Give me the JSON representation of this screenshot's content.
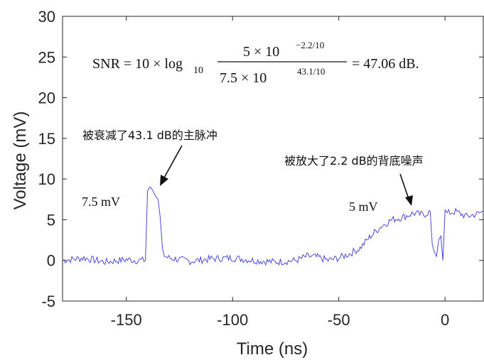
{
  "chart_data": {
    "type": "line",
    "xlabel": "Time (ns)",
    "ylabel": "Voltage (mV)",
    "xlim": [
      -180,
      18
    ],
    "ylim": [
      -5,
      30
    ],
    "x_ticks": [
      -150,
      -100,
      -50,
      0
    ],
    "y_ticks": [
      -5,
      0,
      5,
      10,
      15,
      20,
      25,
      30
    ],
    "grid": false,
    "line_color": "#4b4bd6",
    "series": [
      {
        "x": [
          -180,
          -170,
          -160,
          -150,
          -145,
          -141,
          -140,
          -139,
          -138,
          -137,
          -136,
          -135,
          -134,
          -133,
          -132,
          -130,
          -120,
          -110,
          -100,
          -90,
          -80,
          -70,
          -65,
          -60,
          -55,
          -50,
          -45,
          -40,
          -35,
          -30,
          -25,
          -20,
          -15,
          -10,
          -7,
          -6,
          -5,
          -4,
          -3,
          -2,
          -1,
          0,
          1,
          5,
          10,
          15,
          18
        ],
        "y": [
          0,
          0.3,
          -0.2,
          0.1,
          0,
          0,
          8.5,
          9,
          8.8,
          8.3,
          7.8,
          7.5,
          5.2,
          1.5,
          0.5,
          0.3,
          -0.1,
          0.2,
          0.3,
          0,
          -0.2,
          0,
          0.5,
          0.4,
          0,
          0.3,
          0.8,
          1.5,
          3,
          4.2,
          5,
          5.3,
          5.8,
          5.6,
          6,
          2,
          1,
          0.5,
          2.5,
          3,
          0,
          6.2,
          5.8,
          6,
          5.4,
          5.7,
          6
        ]
      }
    ]
  },
  "annotations": {
    "formula": {
      "lhs": "SNR = 10 × log",
      "log_subscript": "10",
      "numerator": "5 × 10",
      "numerator_exp": "−2.2/10",
      "denominator": "7.5 × 10",
      "denominator_exp": "43.1/10",
      "rhs": "= 47.06 dB."
    },
    "main_pulse_label": "被衰减了43.1 dB的主脉冲",
    "main_pulse_value": "7.5 mV",
    "noise_label": "被放大了2.2 dB的背底噪声",
    "noise_value": "5 mV"
  }
}
